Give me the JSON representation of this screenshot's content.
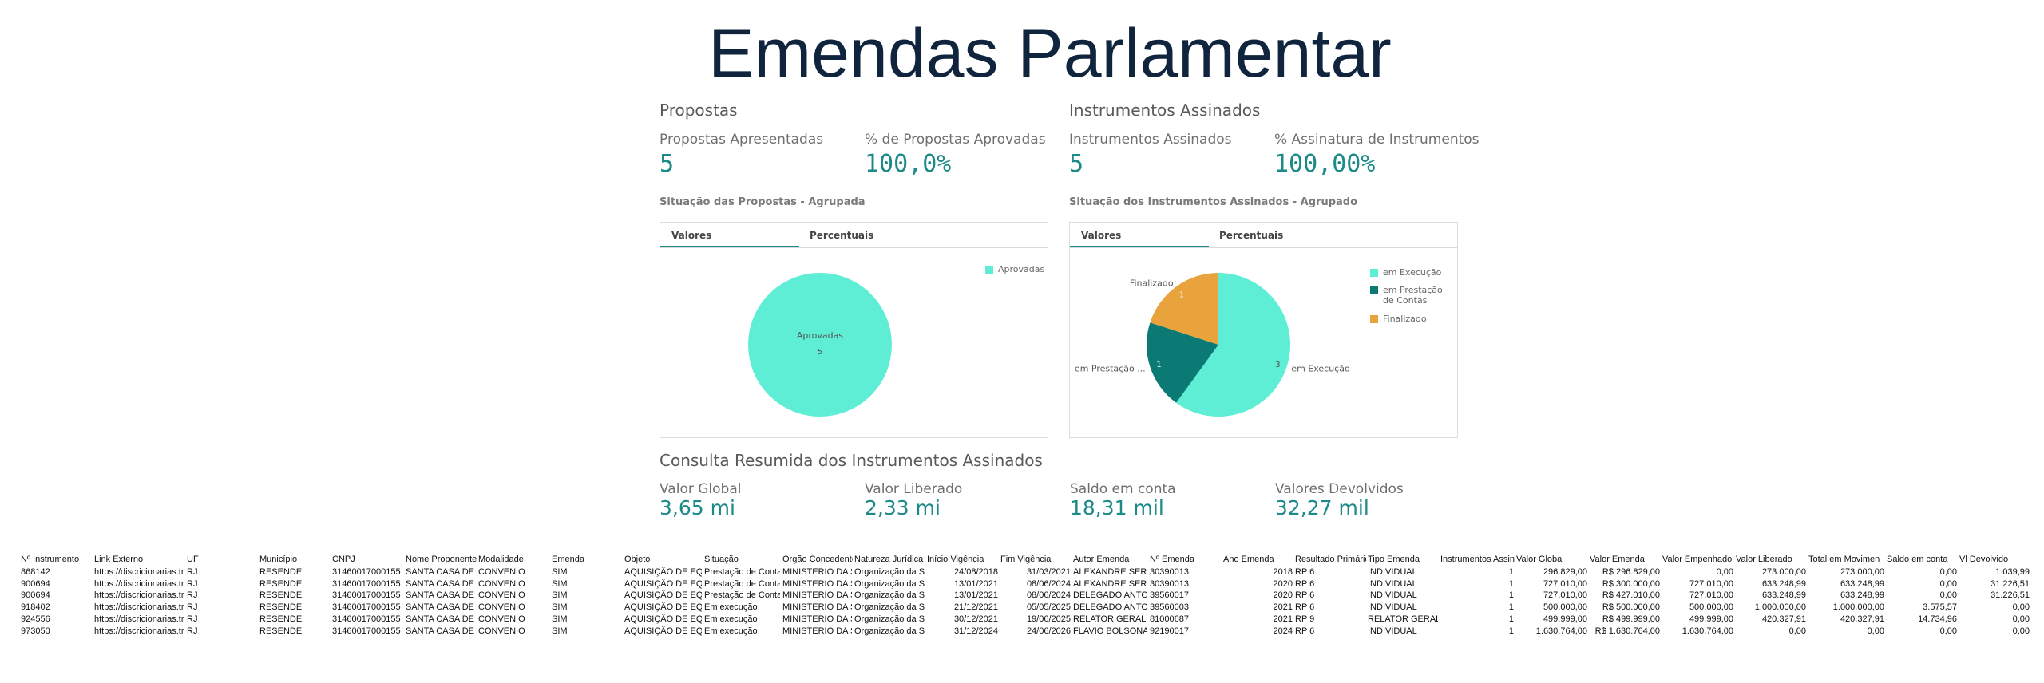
{
  "header": {
    "title": "Emendas Parlamentar"
  },
  "propostas": {
    "title": "Propostas",
    "kpis": [
      {
        "label": "Propostas Apresentadas",
        "value": "5"
      },
      {
        "label": "% de Propostas Aprovadas",
        "value": "100,0%"
      }
    ],
    "chart": {
      "type": "pie",
      "title": "Situação das Propostas - Agrupada",
      "tabs": [
        "Valores",
        "Percentuais"
      ],
      "categories": [
        "Aprovadas"
      ],
      "values": [
        5
      ],
      "colors": [
        "#5eeed6"
      ],
      "slice_labels": [
        "Aprovadas"
      ]
    }
  },
  "instrumentos": {
    "title": "Instrumentos Assinados",
    "kpis": [
      {
        "label": "Instrumentos Assinados",
        "value": "5"
      },
      {
        "label": "% Assinatura de Instrumentos",
        "value": "100,00%"
      }
    ],
    "chart": {
      "type": "pie",
      "title": "Situação dos Instrumentos Assinados - Agrupado",
      "tabs": [
        "Valores",
        "Percentuais"
      ],
      "categories": [
        "em Execução",
        "em Prestação de Contas",
        "Finalizado"
      ],
      "values": [
        3,
        1,
        1
      ],
      "colors": [
        "#5eeed6",
        "#0b7a75",
        "#e8a33d"
      ],
      "slice_labels": [
        "em Execução",
        "em Prestação ...",
        "Finalizado"
      ]
    }
  },
  "consulta": {
    "title": "Consulta Resumida dos Instrumentos Assinados",
    "kpis": [
      {
        "label": "Valor Global",
        "value": "3,65 mi"
      },
      {
        "label": "Valor Liberado",
        "value": "2,33 mi"
      },
      {
        "label": "Saldo em conta",
        "value": "18,31 mil"
      },
      {
        "label": "Valores Devolvidos",
        "value": "32,27 mil"
      }
    ]
  },
  "table": {
    "columns": [
      "Nº Instrumento",
      "Link Externo",
      "UF",
      "Município",
      "CNPJ",
      "Nome Proponente",
      "Modalidade",
      "Emenda",
      "Objeto",
      "Situação",
      "Órgão Concedente",
      "Natureza Jurídica",
      "Início Vigência",
      "Fim Vigência",
      "Autor Emenda",
      "Nº Emenda",
      "Ano Emenda",
      "Resultado Primário",
      "Tipo Emenda",
      "Instrumentos Assin",
      "Valor Global",
      "Valor Emenda",
      "Valor Empenhado",
      "Valor Liberado",
      "Total em Movimen",
      "Saldo em conta",
      "Vl Devolvido"
    ],
    "rows": [
      [
        "868142",
        "https://discricionarias.tr",
        "RJ",
        "RESENDE",
        "31460017000155",
        "SANTA CASA DE MI",
        "CONVENIO",
        "SIM",
        "AQUISIÇÃO DE EQUIP",
        "Prestação de Conta",
        "MINISTERIO DA SAI",
        "Organização da Soc",
        "24/08/2018",
        "31/03/2021",
        "ALEXANDRE SERFIC",
        "30390013",
        "2018",
        "RP 6",
        "INDIVIDUAL",
        "1",
        "296.829,00",
        "R$ 296.829,00",
        "0,00",
        "273.000,00",
        "273.000,00",
        "0,00",
        "1.039,99"
      ],
      [
        "900694",
        "https://discricionarias.tr",
        "RJ",
        "RESENDE",
        "31460017000155",
        "SANTA CASA DE MI",
        "CONVENIO",
        "SIM",
        "AQUISIÇÃO DE EQUIP",
        "Prestação de Conta",
        "MINISTERIO DA SAI",
        "Organização da Soc",
        "13/01/2021",
        "08/06/2024",
        "ALEXANDRE SERFIC",
        "30390013",
        "2020",
        "RP 6",
        "INDIVIDUAL",
        "1",
        "727.010,00",
        "R$ 300.000,00",
        "727.010,00",
        "633.248,99",
        "633.248,99",
        "0,00",
        "31.226,51"
      ],
      [
        "900694",
        "https://discricionarias.tr",
        "RJ",
        "RESENDE",
        "31460017000155",
        "SANTA CASA DE MI",
        "CONVENIO",
        "SIM",
        "AQUISIÇÃO DE EQUIP",
        "Prestação de Conta",
        "MINISTERIO DA SAI",
        "Organização da Soc",
        "13/01/2021",
        "08/06/2024",
        "DELEGADO ANTON",
        "39560017",
        "2020",
        "RP 6",
        "INDIVIDUAL",
        "1",
        "727.010,00",
        "R$ 427.010,00",
        "727.010,00",
        "633.248,99",
        "633.248,99",
        "0,00",
        "31.226,51"
      ],
      [
        "918402",
        "https://discricionarias.tr",
        "RJ",
        "RESENDE",
        "31460017000155",
        "SANTA CASA DE MI",
        "CONVENIO",
        "SIM",
        "AQUISIÇÃO DE EQUIP",
        "Em execução",
        "MINISTERIO DA SAI",
        "Organização da Soc",
        "21/12/2021",
        "05/05/2025",
        "DELEGADO ANTON",
        "39560003",
        "2021",
        "RP 6",
        "INDIVIDUAL",
        "1",
        "500.000,00",
        "R$ 500.000,00",
        "500.000,00",
        "1.000.000,00",
        "1.000.000,00",
        "3.575,57",
        "0,00"
      ],
      [
        "924556",
        "https://discricionarias.tr",
        "RJ",
        "RESENDE",
        "31460017000155",
        "SANTA CASA DE MI",
        "CONVENIO",
        "SIM",
        "AQUISIÇÃO DE EQUIP",
        "Em execução",
        "MINISTERIO DA SAI",
        "Organização da Soc",
        "30/12/2021",
        "19/06/2025",
        "RELATOR GERAL",
        "81000687",
        "2021",
        "RP 9",
        "RELATOR GERAL",
        "1",
        "499.999,00",
        "R$ 499.999,00",
        "499.999,00",
        "420.327,91",
        "420.327,91",
        "14.734,96",
        "0,00"
      ],
      [
        "973050",
        "https://discricionarias.tr",
        "RJ",
        "RESENDE",
        "31460017000155",
        "SANTA CASA DE MI",
        "CONVENIO",
        "SIM",
        "AQUISIÇÃO DE EQUIP",
        "Em execução",
        "MINISTERIO DA SAI",
        "Organização da Soc",
        "31/12/2024",
        "24/06/2026",
        "FLAVIO BOLSONAR",
        "92190017",
        "2024",
        "RP 6",
        "INDIVIDUAL",
        "1",
        "1.630.764,00",
        "R$ 1.630.764,00",
        "1.630.764,00",
        "0,00",
        "0,00",
        "0,00",
        "0,00"
      ]
    ]
  }
}
